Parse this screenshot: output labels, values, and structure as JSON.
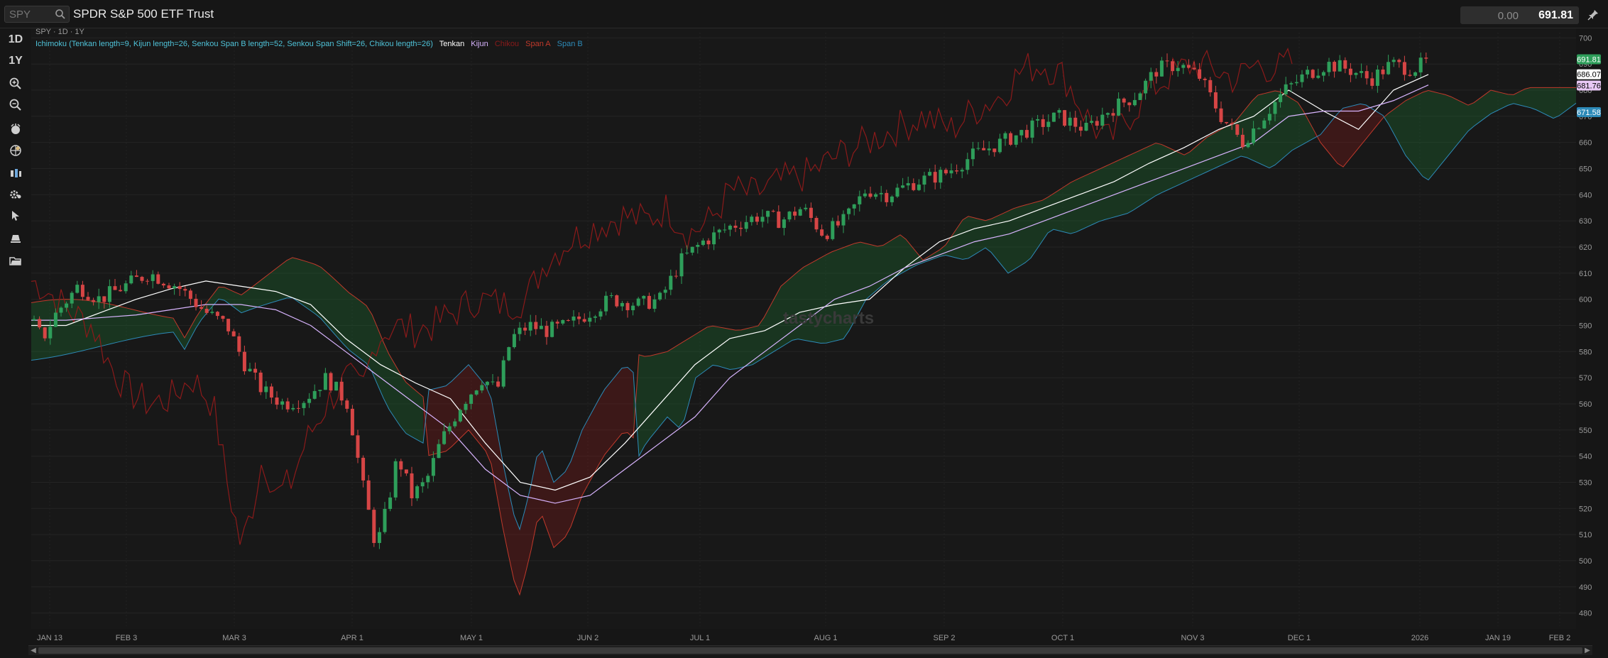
{
  "header": {
    "symbol_placeholder": "SPY",
    "instrument_name": "SPDR S&P 500 ETF Trust",
    "price_change": "0.00",
    "last_price": "691.81"
  },
  "toolbar": {
    "timeframe_1d": "1D",
    "range_1y": "1Y",
    "icons": [
      "zoom-in-icon",
      "zoom-out-icon",
      "indicators-icon",
      "studies-icon",
      "chart-type-icon",
      "settings-icon",
      "cursor-icon",
      "drawing-tools-icon",
      "folder-icon"
    ]
  },
  "chart": {
    "study_label": "SPY · 1D · 1Y",
    "indicator_name": "Ichimoku (Tenkan length=9, Kijun length=26, Senkou Span B length=52, Senkou Span Shift=26, Chikou length=26)",
    "legend": [
      {
        "label": "Tenkan",
        "color": "#ffffff"
      },
      {
        "label": "Kijun",
        "color": "#d8b4fe"
      },
      {
        "label": "Chikou",
        "color": "#8b1a1a"
      },
      {
        "label": "Span A",
        "color": "#c0392b"
      },
      {
        "label": "Span B",
        "color": "#2d8ab8"
      }
    ],
    "watermark": "tastycharts",
    "up_color": "#2e9e5a",
    "down_color": "#d64545",
    "price_tags": [
      {
        "value": "691.81",
        "bg": "#2e9e5a",
        "fg": "#ffffff"
      },
      {
        "value": "686.07",
        "bg": "#ffffff",
        "fg": "#000000"
      },
      {
        "value": "681.76",
        "bg": "#e8c8f5",
        "fg": "#000000"
      },
      {
        "value": "671.58",
        "bg": "#2d8ab8",
        "fg": "#ffffff"
      }
    ]
  },
  "chart_data": {
    "type": "line",
    "title": "",
    "x_ticks": [
      "JAN 13",
      "FEB 3",
      "MAR 3",
      "APR 1",
      "MAY 1",
      "JUN 2",
      "JUL 1",
      "AUG 1",
      "SEP 2",
      "OCT 1",
      "NOV 3",
      "DEC 1",
      "2026",
      "JAN 19",
      "FEB 2"
    ],
    "y_ticks": [
      700,
      690,
      680,
      670,
      660,
      650,
      640,
      630,
      620,
      610,
      600,
      590,
      580,
      570,
      560,
      550,
      540,
      530,
      520,
      510,
      500,
      490,
      480
    ],
    "ylim": [
      475,
      702
    ],
    "series": [
      {
        "name": "Tenkan",
        "values": [
          590,
          590,
          595,
          600,
          604,
          607,
          605,
          603,
          598,
          585,
          575,
          568,
          562,
          545,
          530,
          527,
          532,
          545,
          560,
          575,
          585,
          588,
          595,
          598,
          600,
          612,
          622,
          627,
          630,
          635,
          640,
          645,
          652,
          658,
          665,
          670,
          680,
          672,
          665,
          680,
          686
        ]
      },
      {
        "name": "Kijun",
        "values": [
          592,
          592,
          593,
          594,
          596,
          598,
          598,
          596,
          590,
          580,
          570,
          560,
          550,
          535,
          525,
          522,
          525,
          535,
          545,
          555,
          570,
          580,
          590,
          600,
          605,
          612,
          617,
          622,
          625,
          630,
          635,
          640,
          645,
          650,
          655,
          660,
          670,
          672,
          672,
          676,
          682
        ]
      }
    ]
  }
}
